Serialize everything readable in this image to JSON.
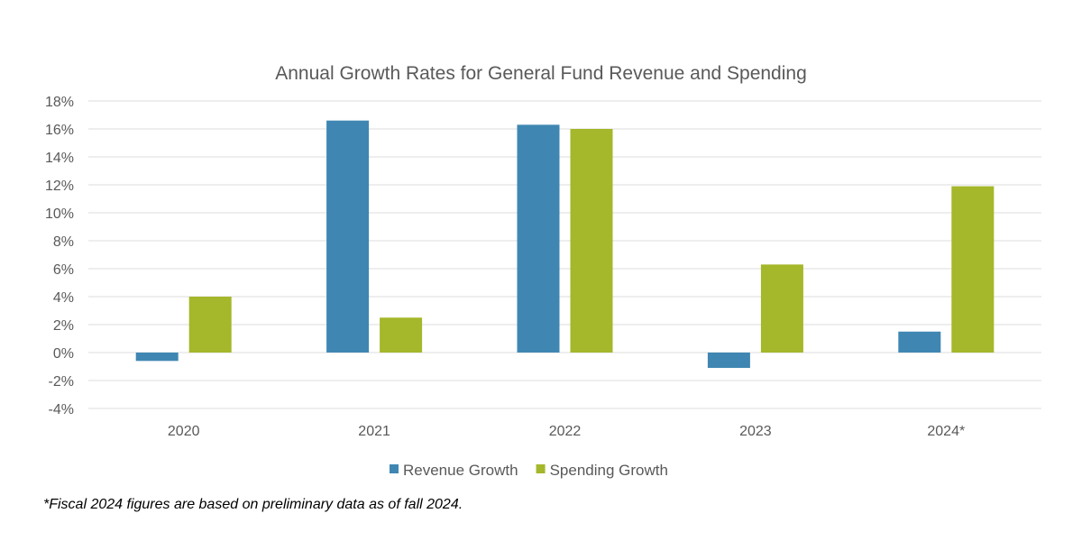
{
  "chart_data": {
    "type": "bar",
    "title": "Annual Growth Rates for General Fund Revenue and Spending",
    "categories": [
      "2020",
      "2021",
      "2022",
      "2023",
      "2024*"
    ],
    "series": [
      {
        "name": "Revenue Growth",
        "values": [
          -0.6,
          16.6,
          16.3,
          -1.1,
          1.5
        ],
        "color": "#3f87b2"
      },
      {
        "name": "Spending Growth",
        "values": [
          4.0,
          2.5,
          16.0,
          6.3,
          11.9
        ],
        "color": "#a5b72a"
      }
    ],
    "ylim": [
      -4,
      18
    ],
    "yticks": [
      -4,
      -2,
      0,
      2,
      4,
      6,
      8,
      10,
      12,
      14,
      16,
      18
    ],
    "ytick_format": "%",
    "grid": true,
    "legend": "bottom"
  },
  "footnote": "*Fiscal 2024 figures are based on preliminary data as of fall 2024."
}
